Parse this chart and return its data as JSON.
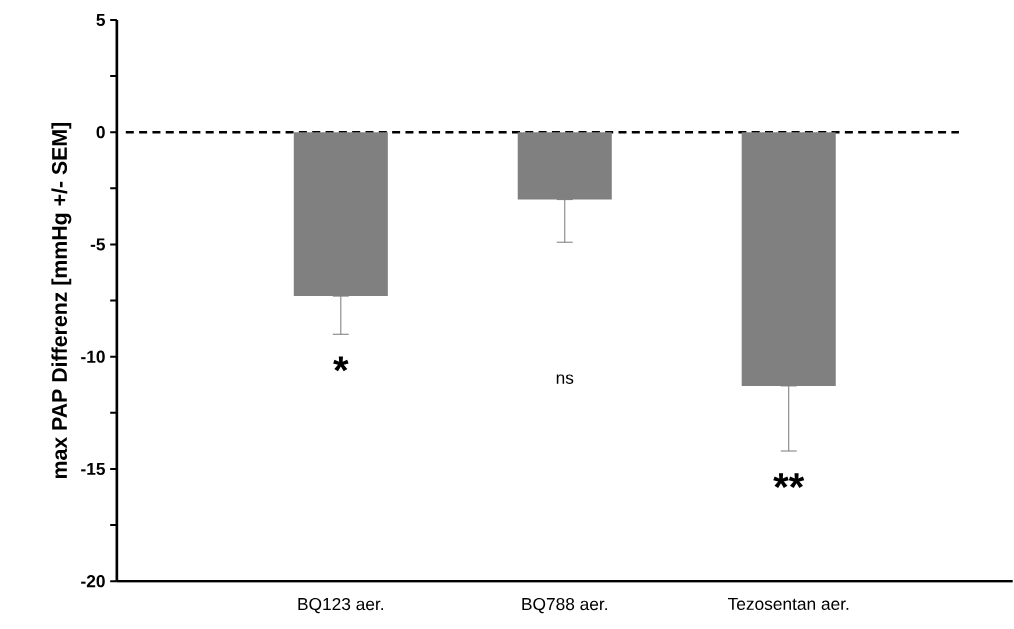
{
  "chart_data": {
    "type": "bar",
    "ylabel": "max PAP Differenz [mmHg +/- SEM]",
    "categories": [
      "BQ123 aer.",
      "BQ788 aer.",
      "Tezosentan aer."
    ],
    "values": [
      -7.3,
      -3.0,
      -11.3
    ],
    "errors": [
      [
        -9.0,
        -7.3
      ],
      [
        -4.9,
        -3.0
      ],
      [
        -14.2,
        -11.3
      ]
    ],
    "color": "#808080",
    "ylim": [
      -20,
      5
    ],
    "yticks": [
      -20,
      {
        "value": -17.5,
        "label": null
      },
      -15,
      {
        "value": -12.5,
        "label": null
      },
      -10,
      {
        "value": -7.5,
        "label": null
      },
      -5,
      {
        "value": -2.5,
        "label": null
      },
      0,
      {
        "value": 2.5,
        "label": null
      },
      5
    ],
    "ref_lines": [
      {
        "axis": "y",
        "value": 0,
        "color": "#000000",
        "line_style": "dashed"
      }
    ],
    "annotations": [
      "*",
      "ns",
      "**"
    ]
  }
}
